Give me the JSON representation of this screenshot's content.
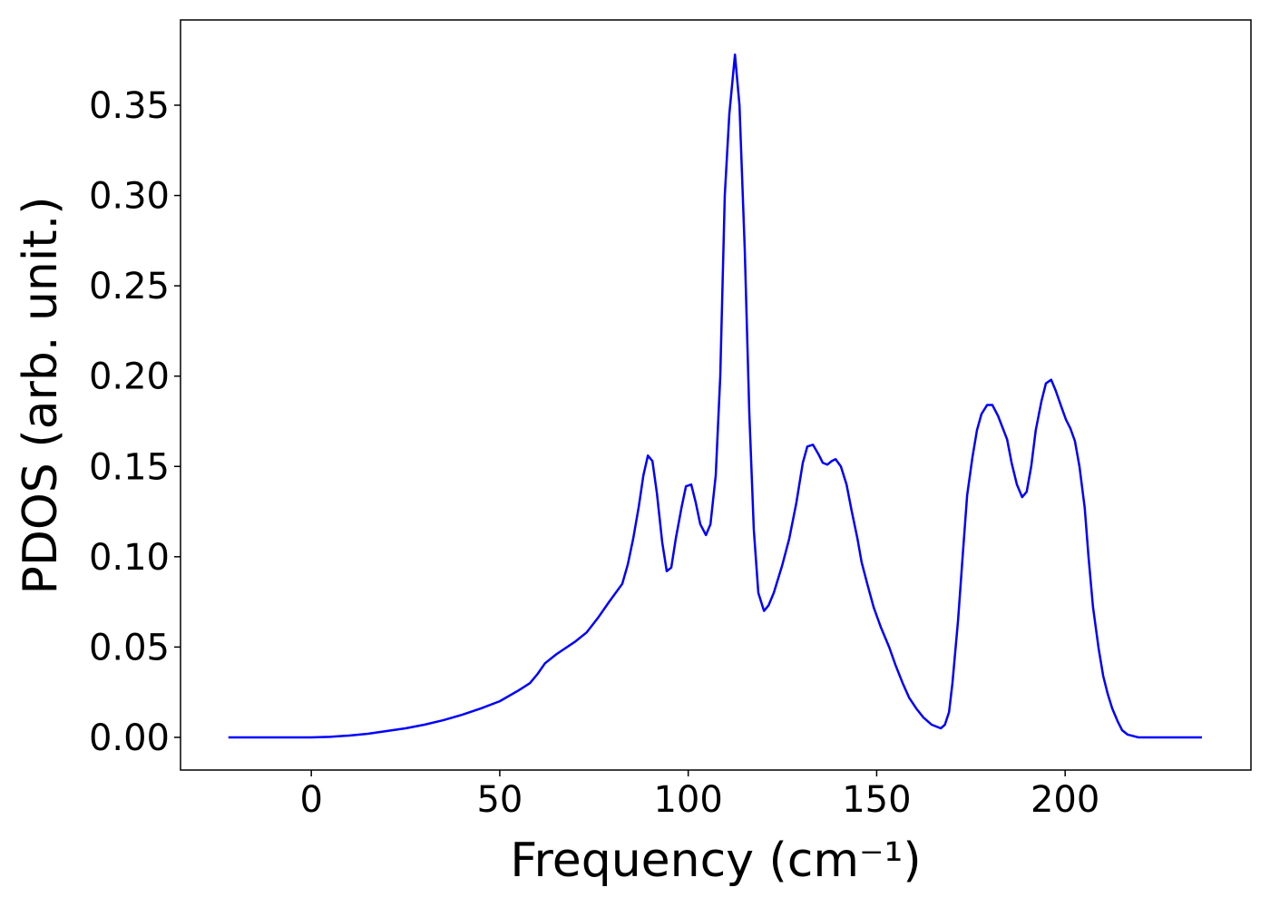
{
  "chart_data": {
    "type": "line",
    "xlabel": "Frequency (cm⁻¹)",
    "ylabel": "PDOS (arb. unit.)",
    "xlim": [
      -34.7,
      249.3
    ],
    "ylim": [
      -0.0181,
      0.3972
    ],
    "xticks": [
      0,
      50,
      100,
      150,
      200
    ],
    "yticks": [
      {
        "value": 0,
        "label": "0.00"
      },
      {
        "value": 0.05,
        "label": "0.05"
      },
      {
        "value": 0.1,
        "label": "0.10"
      },
      {
        "value": 0.15,
        "label": "0.15"
      },
      {
        "value": 0.2,
        "label": "0.20"
      },
      {
        "value": 0.25,
        "label": "0.25"
      },
      {
        "value": 0.3,
        "label": "0.30"
      },
      {
        "value": 0.35,
        "label": "0.35"
      }
    ],
    "x": [
      -22,
      0,
      5,
      10,
      15,
      20,
      25,
      30,
      35,
      40,
      45,
      50,
      55,
      58,
      60,
      62,
      65,
      70,
      73,
      76,
      79,
      82.5,
      84,
      85.4,
      86.9,
      88.1,
      89.3,
      90.5,
      91.7,
      93.1,
      94.3,
      95.5,
      96.7,
      98.2,
      99.4,
      100.8,
      102,
      103.2,
      104.7,
      105.9,
      107.3,
      108.5,
      109.7,
      110.9,
      112.4,
      113.6,
      115,
      116.2,
      117.4,
      118.6,
      120.1,
      121.3,
      122.7,
      124.9,
      126.8,
      128.7,
      130.4,
      131.6,
      133.1,
      134.5,
      135.7,
      136.9,
      138.1,
      139.1,
      140.5,
      142,
      143.4,
      144.9,
      146,
      147.5,
      149.2,
      151.1,
      153.3,
      155,
      156.9,
      158.6,
      160.5,
      162.4,
      164.6,
      167,
      168.1,
      169.2,
      170.1,
      171.6,
      172.8,
      174,
      175.4,
      176.6,
      177.8,
      179.3,
      180.7,
      182.2,
      184.6,
      185.8,
      187.2,
      188.6,
      189.8,
      191,
      192.2,
      193.7,
      194.9,
      196.3,
      197.5,
      199,
      200.2,
      201.4,
      202.6,
      203.8,
      205.2,
      206.2,
      207.4,
      208.9,
      210.1,
      211.3,
      212.5,
      213.9,
      215.1,
      216.6,
      219.4,
      236.3
    ],
    "series": [
      {
        "color": "#0000ff",
        "values": [
          0,
          0,
          0.0003,
          0.001,
          0.002,
          0.0035,
          0.005,
          0.007,
          0.0095,
          0.0125,
          0.016,
          0.02,
          0.026,
          0.03,
          0.035,
          0.041,
          0.046,
          0.053,
          0.058,
          0.066,
          0.075,
          0.085,
          0.096,
          0.11,
          0.128,
          0.145,
          0.156,
          0.153,
          0.135,
          0.108,
          0.092,
          0.094,
          0.11,
          0.127,
          0.139,
          0.14,
          0.13,
          0.118,
          0.112,
          0.118,
          0.145,
          0.2,
          0.3,
          0.345,
          0.378,
          0.35,
          0.27,
          0.18,
          0.115,
          0.08,
          0.07,
          0.073,
          0.08,
          0.095,
          0.11,
          0.13,
          0.152,
          0.161,
          0.162,
          0.157,
          0.152,
          0.151,
          0.153,
          0.154,
          0.15,
          0.14,
          0.125,
          0.11,
          0.097,
          0.085,
          0.072,
          0.061,
          0.05,
          0.04,
          0.03,
          0.022,
          0.016,
          0.011,
          0.007,
          0.005,
          0.007,
          0.014,
          0.03,
          0.065,
          0.1,
          0.134,
          0.155,
          0.17,
          0.179,
          0.184,
          0.184,
          0.178,
          0.165,
          0.152,
          0.14,
          0.133,
          0.136,
          0.15,
          0.17,
          0.186,
          0.196,
          0.198,
          0.192,
          0.183,
          0.176,
          0.171,
          0.164,
          0.15,
          0.127,
          0.1,
          0.072,
          0.049,
          0.034,
          0.024,
          0.016,
          0.009,
          0.004,
          0.0015,
          0,
          0
        ]
      }
    ]
  }
}
